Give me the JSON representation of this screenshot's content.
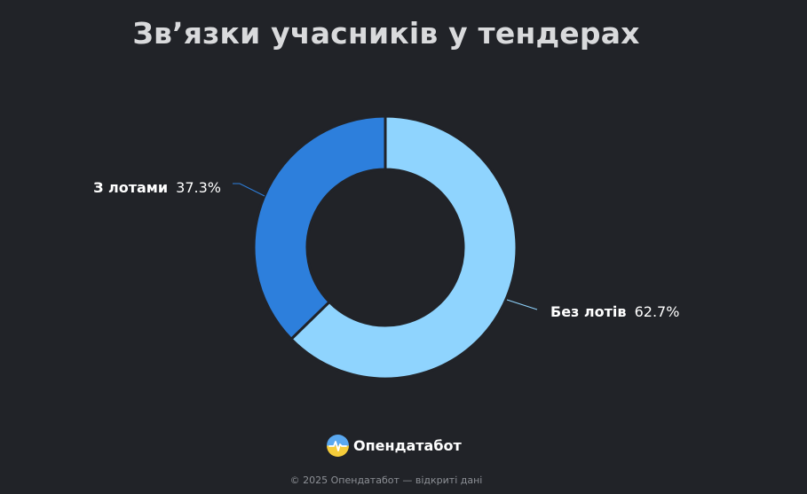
{
  "title": "Зв’язки учасників у тендерах",
  "chart_data": {
    "type": "pie",
    "donut": true,
    "title": "Зв’язки учасників у тендерах",
    "categories": [
      "Без лотів",
      "З лотами"
    ],
    "values": [
      62.7,
      37.3
    ],
    "value_suffix": "%",
    "colors": [
      "#8fd4fe",
      "#2d7fdc"
    ],
    "legend": "none"
  },
  "labels": {
    "slice0_name": "Без лотів",
    "slice0_pct": "62.7%",
    "slice1_name": "З лотами",
    "slice1_pct": "37.3%"
  },
  "brand": {
    "name": "Опендатабот",
    "logo_icon": "opendatabot-logo-icon"
  },
  "footer": {
    "text": "© 2025 Опендатабот — відкриті дані"
  }
}
